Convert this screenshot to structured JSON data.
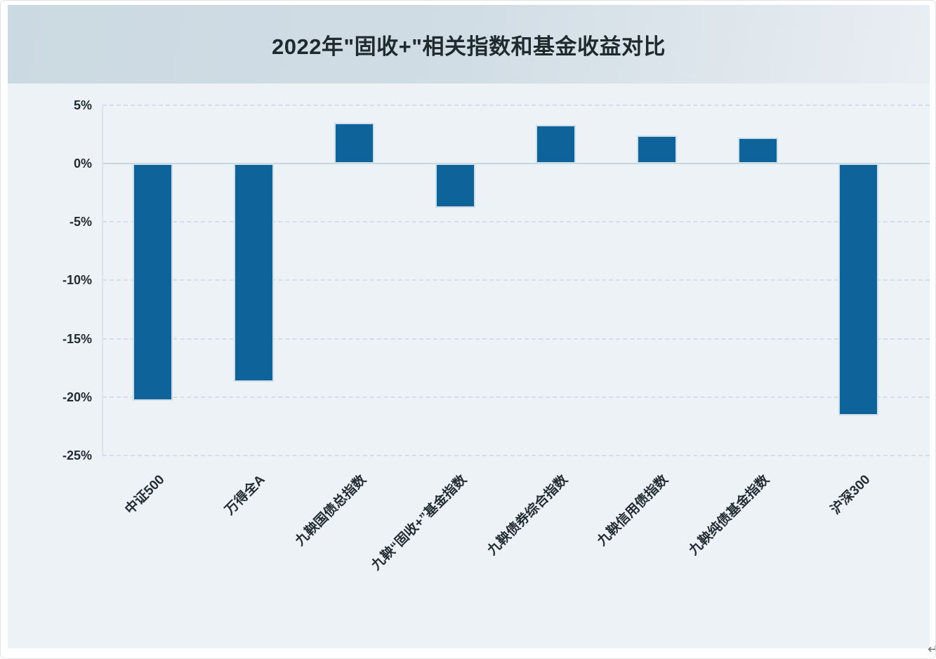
{
  "figure": {
    "return_marker": "↵"
  },
  "chart_data": {
    "type": "bar",
    "title": "2022年\"固收+\"相关指数和基金收益对比",
    "categories": [
      "中证500",
      "万得全A",
      "九鞅国债总指数",
      "九鞅“固收+”基金指数",
      "九鞅债券综合指数",
      "九鞅信用债指数",
      "九鞅纯债基金指数",
      "沪深300"
    ],
    "values": [
      -20.3,
      -18.7,
      3.5,
      -3.8,
      3.3,
      2.4,
      2.2,
      -21.6
    ],
    "unit": "%",
    "xlabel": "",
    "ylabel": "",
    "ylim": [
      -25,
      5
    ],
    "yticks": [
      5,
      0,
      -5,
      -10,
      -15,
      -20,
      -25
    ],
    "ytick_labels": [
      "5%",
      "0%",
      "-5%",
      "-10%",
      "-15%",
      "-20%",
      "-25%"
    ],
    "grid": "horizontal-dashed",
    "legend": "none",
    "colors": {
      "bar_fill": "#0f639b",
      "bar_stroke": "#cfdfe9",
      "plot_background": "#edf2f7",
      "band_gradient_left": "#cbd9e2",
      "band_gradient_right": "#e9eef3",
      "gridline": "#d5dee4",
      "zero_line": "#c7d5dd",
      "axis_line": "#dbe4e9",
      "tick_text": "#222d33",
      "title_text": "#1e2a2d"
    }
  }
}
